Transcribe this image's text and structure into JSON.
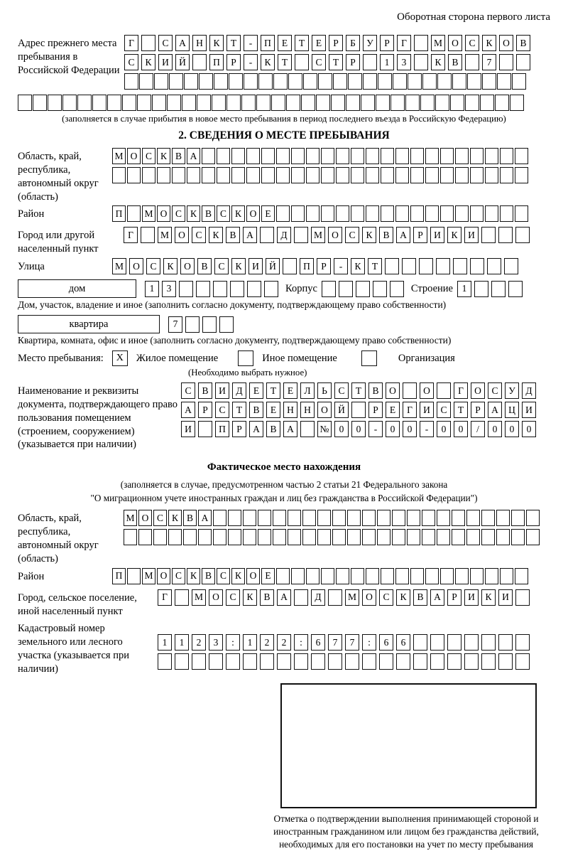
{
  "page": {
    "header": "Оборотная сторона первого листа"
  },
  "prev_address": {
    "label": "Адрес прежнего места пребывания в Российской Федерации",
    "row1": [
      "Г",
      "",
      "С",
      "А",
      "Н",
      "К",
      "Т",
      "-",
      "П",
      "Е",
      "Т",
      "Е",
      "Р",
      "Б",
      "У",
      "Р",
      "Г",
      "",
      "М",
      "О",
      "С",
      "К",
      "О",
      "В"
    ],
    "row2": [
      "С",
      "К",
      "И",
      "Й",
      "",
      "П",
      "Р",
      "-",
      "К",
      "Т",
      "",
      "С",
      "Т",
      "Р",
      "",
      "1",
      "3",
      "",
      "К",
      "В",
      "",
      "7",
      "",
      ""
    ],
    "row3": 27,
    "row4": 34,
    "caption": "(заполняется в случае прибытия в новое место пребывания в период последнего въезда в Российскую Федерацию)"
  },
  "section2": {
    "title": "2. СВЕДЕНИЯ О МЕСТЕ ПРЕБЫВАНИЯ",
    "region": {
      "label": "Область, край, республика, автономный округ (область)",
      "row1": [
        "М",
        "О",
        "С",
        "К",
        "В",
        "А",
        "",
        "",
        "",
        "",
        "",
        "",
        "",
        "",
        "",
        "",
        "",
        "",
        "",
        "",
        "",
        "",
        "",
        "",
        "",
        "",
        "",
        ""
      ],
      "row2": 28
    },
    "district": {
      "label": "Район",
      "row": [
        "П",
        "",
        "М",
        "О",
        "С",
        "К",
        "В",
        "С",
        "К",
        "О",
        "Е",
        "",
        "",
        "",
        "",
        "",
        "",
        "",
        "",
        "",
        "",
        "",
        "",
        "",
        "",
        "",
        "",
        ""
      ]
    },
    "city": {
      "label": "Город или другой населенный пункт",
      "row": [
        "Г",
        "",
        "М",
        "О",
        "С",
        "К",
        "В",
        "А",
        "",
        "Д",
        "",
        "М",
        "О",
        "С",
        "К",
        "В",
        "А",
        "Р",
        "И",
        "К",
        "И",
        "",
        "",
        ""
      ]
    },
    "street": {
      "label": "Улица",
      "row": [
        "М",
        "О",
        "С",
        "К",
        "О",
        "В",
        "С",
        "К",
        "И",
        "Й",
        "",
        "П",
        "Р",
        "-",
        "К",
        "Т",
        "",
        "",
        "",
        "",
        "",
        "",
        "",
        ""
      ]
    },
    "house": {
      "box_label": "дом",
      "cells": [
        "1",
        "3",
        "",
        "",
        "",
        "",
        "",
        ""
      ],
      "korpus_label": "Корпус",
      "korpus_cells": 5,
      "stroenie_label": "Строение",
      "stroenie_cells": [
        "1",
        "",
        "",
        ""
      ],
      "caption": "Дом, участок, владение и иное (заполнить согласно документу, подтверждающему право собственности)"
    },
    "apartment": {
      "box_label": "квартира",
      "cells": [
        "7",
        "",
        "",
        ""
      ],
      "caption": "Квартира, комната, офис и иное (заполнить согласно документу, подтверждающему право собственности)"
    },
    "stay_type": {
      "label": "Место пребывания:",
      "checked_mark": "X",
      "residential_label": "Жилое помещение",
      "other_label": "Иное помещение",
      "organization_label": "Организация",
      "caption": "(Необходимо выбрать нужное)"
    },
    "document": {
      "label": "Наименование и реквизиты документа, подтверждающего право пользования помещением (строением, сооружением) (указывается при наличии)",
      "row1": [
        "С",
        "В",
        "И",
        "Д",
        "Е",
        "Т",
        "Е",
        "Л",
        "Ь",
        "С",
        "Т",
        "В",
        "О",
        "",
        "О",
        "",
        "Г",
        "О",
        "С",
        "У",
        "Д"
      ],
      "row2": [
        "А",
        "Р",
        "С",
        "Т",
        "В",
        "Е",
        "Н",
        "Н",
        "О",
        "Й",
        "",
        "Р",
        "Е",
        "Г",
        "И",
        "С",
        "Т",
        "Р",
        "А",
        "Ц",
        "И"
      ],
      "row3": [
        "И",
        "",
        "П",
        "Р",
        "А",
        "В",
        "А",
        "",
        "№",
        "0",
        "0",
        "-",
        "0",
        "0",
        "-",
        "0",
        "0",
        "/",
        "0",
        "0",
        "0"
      ]
    }
  },
  "actual_location": {
    "title": "Фактическое место нахождения",
    "caption1": "(заполняется в случае, предусмотренном частью 2 статьи 21 Федерального закона",
    "caption2": "\"О миграционном учете иностранных граждан и лиц без гражданства в Российской Федерации\")",
    "region": {
      "label": "Область, край, республика, автономный округ (область)",
      "row1": [
        "М",
        "О",
        "С",
        "К",
        "В",
        "А",
        "",
        "",
        "",
        "",
        "",
        "",
        "",
        "",
        "",
        "",
        "",
        "",
        "",
        "",
        "",
        "",
        "",
        "",
        "",
        "",
        "",
        ""
      ],
      "row2": 28
    },
    "district": {
      "label": "Район",
      "row": [
        "П",
        "",
        "М",
        "О",
        "С",
        "К",
        "В",
        "С",
        "К",
        "О",
        "Е",
        "",
        "",
        "",
        "",
        "",
        "",
        "",
        "",
        "",
        "",
        "",
        "",
        "",
        "",
        "",
        "",
        ""
      ]
    },
    "city": {
      "label": "Город, сельское поселение, иной населенный пункт",
      "row": [
        "Г",
        "",
        "М",
        "О",
        "С",
        "К",
        "В",
        "А",
        "",
        "Д",
        "",
        "М",
        "О",
        "С",
        "К",
        "В",
        "А",
        "Р",
        "И",
        "К",
        "И",
        ""
      ]
    },
    "cadastre": {
      "label": "Кадастровый номер земельного или лесного участка (указывается при наличии)",
      "row1": [
        "1",
        "1",
        "2",
        "3",
        ":",
        "1",
        "2",
        "2",
        ":",
        "6",
        "7",
        "7",
        ":",
        "6",
        "6",
        "",
        "",
        "",
        "",
        "",
        "",
        ""
      ],
      "row2": 22
    }
  },
  "stamp": {
    "caption": "Отметка о подтверждении выполнения принимающей стороной и иностранным гражданином или лицом без гражданства действий, необходимых для его постановки на учет по месту пребывания"
  }
}
